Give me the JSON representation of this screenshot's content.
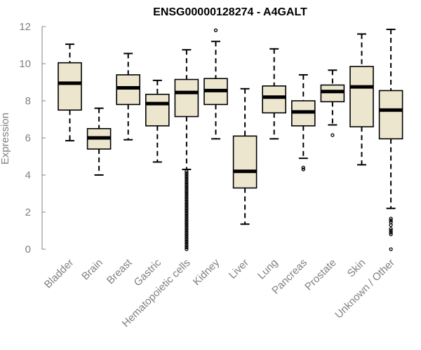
{
  "chart_data": {
    "type": "boxplot",
    "title": "ENSG00000128274 - A4GALT",
    "xlabel": "",
    "ylabel": "Expression",
    "ylim": [
      0,
      12
    ],
    "yticks": [
      0,
      2,
      4,
      6,
      8,
      10,
      12
    ],
    "grid": false,
    "box_fill": "#ede6cf",
    "series": [
      {
        "name": "Bladder",
        "whisker_low": 5.85,
        "q1": 7.5,
        "median": 8.95,
        "q3": 10.05,
        "whisker_high": 11.05,
        "outliers": []
      },
      {
        "name": "Brain",
        "whisker_low": 4.0,
        "q1": 5.4,
        "median": 6.0,
        "q3": 6.5,
        "whisker_high": 7.6,
        "outliers": []
      },
      {
        "name": "Breast",
        "whisker_low": 5.9,
        "q1": 7.8,
        "median": 8.7,
        "q3": 9.4,
        "whisker_high": 10.55,
        "outliers": []
      },
      {
        "name": "Gastric",
        "whisker_low": 4.7,
        "q1": 6.65,
        "median": 7.85,
        "q3": 8.35,
        "whisker_high": 9.1,
        "outliers": []
      },
      {
        "name": "Hematopoietic cells",
        "whisker_low": 4.3,
        "q1": 7.15,
        "median": 8.45,
        "q3": 9.15,
        "whisker_high": 10.75,
        "outliers": [
          0.0,
          0.1,
          0.2,
          0.3,
          0.4,
          0.5,
          0.6,
          0.7,
          0.8,
          0.9,
          1.0,
          1.1,
          1.2,
          1.3,
          1.4,
          1.5,
          1.6,
          1.7,
          1.8,
          1.9,
          2.0,
          2.1,
          2.2,
          2.3,
          2.4,
          2.5,
          2.6,
          2.7,
          2.8,
          2.9,
          3.0,
          3.1,
          3.2,
          3.3,
          3.4,
          3.5,
          3.6,
          3.7,
          3.8,
          3.9,
          4.0,
          4.1,
          4.2
        ]
      },
      {
        "name": "Kidney",
        "whisker_low": 5.95,
        "q1": 7.8,
        "median": 8.55,
        "q3": 9.2,
        "whisker_high": 11.2,
        "outliers": [
          11.8
        ]
      },
      {
        "name": "Liver",
        "whisker_low": 1.35,
        "q1": 3.3,
        "median": 4.2,
        "q3": 6.1,
        "whisker_high": 8.65,
        "outliers": []
      },
      {
        "name": "Lung",
        "whisker_low": 5.95,
        "q1": 7.35,
        "median": 8.2,
        "q3": 8.8,
        "whisker_high": 10.8,
        "outliers": []
      },
      {
        "name": "Pancreas",
        "whisker_low": 4.9,
        "q1": 6.65,
        "median": 7.4,
        "q3": 8.0,
        "whisker_high": 9.4,
        "outliers": [
          4.3,
          4.4
        ]
      },
      {
        "name": "Prostate",
        "whisker_low": 6.7,
        "q1": 7.95,
        "median": 8.5,
        "q3": 8.85,
        "whisker_high": 9.65,
        "outliers": [
          6.15
        ]
      },
      {
        "name": "Skin",
        "whisker_low": 4.55,
        "q1": 6.6,
        "median": 8.75,
        "q3": 9.85,
        "whisker_high": 11.6,
        "outliers": []
      },
      {
        "name": "Unknown / Other",
        "whisker_low": 2.2,
        "q1": 5.95,
        "median": 7.5,
        "q3": 8.55,
        "whisker_high": 11.85,
        "outliers": [
          0.0,
          0.8,
          0.9,
          1.0,
          1.1,
          1.3,
          1.45,
          1.55,
          1.65
        ]
      }
    ]
  }
}
